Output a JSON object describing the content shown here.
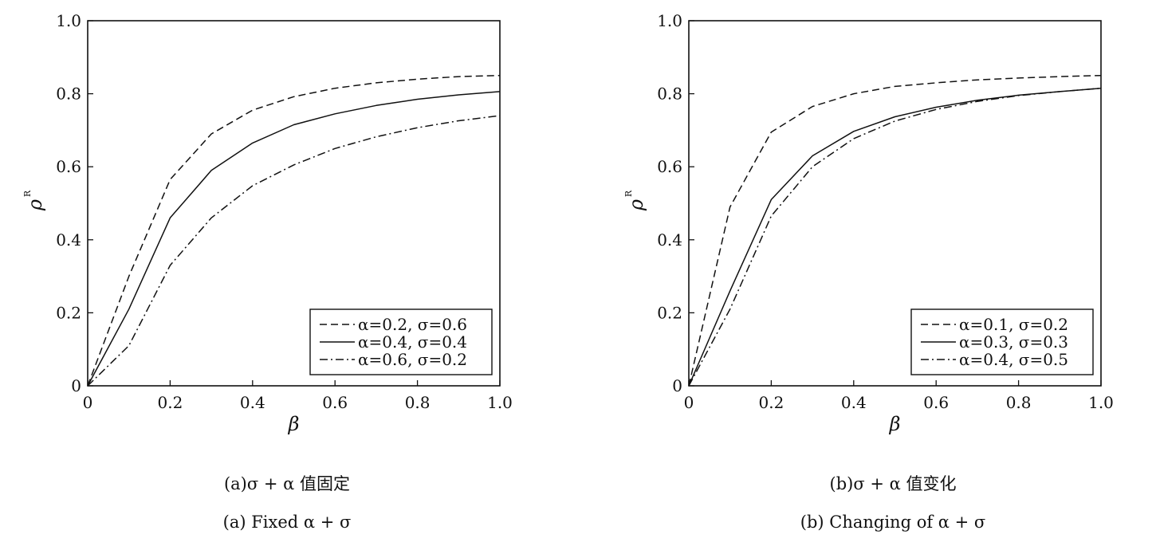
{
  "chart_data": [
    {
      "type": "line",
      "caption_cn": "(a)σ + α 值固定",
      "caption_en": "(a) Fixed α + σ",
      "xlabel": "β",
      "ylabel": "ρ",
      "ylabel_sup": "R",
      "xlim": [
        0,
        1.0
      ],
      "ylim": [
        0,
        1.0
      ],
      "xticks": [
        "0",
        "0.2",
        "0.4",
        "0.6",
        "0.8",
        "1.0"
      ],
      "yticks": [
        "0",
        "0.2",
        "0.4",
        "0.6",
        "0.8",
        "1.0"
      ],
      "grid": false,
      "legend_position": "bottom-right",
      "x": [
        0,
        0.1,
        0.2,
        0.3,
        0.4,
        0.5,
        0.6,
        0.7,
        0.8,
        0.9,
        1.0
      ],
      "series": [
        {
          "name": "α=0.2, σ=0.6",
          "style": "dashed",
          "values": [
            0,
            0.3,
            0.565,
            0.69,
            0.755,
            0.792,
            0.815,
            0.83,
            0.84,
            0.847,
            0.85
          ]
        },
        {
          "name": "α=0.4, σ=0.4",
          "style": "solid",
          "values": [
            0,
            0.21,
            0.46,
            0.59,
            0.665,
            0.715,
            0.745,
            0.768,
            0.785,
            0.797,
            0.806
          ]
        },
        {
          "name": "α=0.6, σ=0.2",
          "style": "dashdot",
          "values": [
            0,
            0.11,
            0.33,
            0.46,
            0.548,
            0.605,
            0.65,
            0.682,
            0.707,
            0.726,
            0.74
          ]
        }
      ]
    },
    {
      "type": "line",
      "caption_cn": "(b)σ + α 值变化",
      "caption_en": "(b) Changing of α + σ",
      "xlabel": "β",
      "ylabel": "ρ",
      "ylabel_sup": "R",
      "xlim": [
        0,
        1.0
      ],
      "ylim": [
        0,
        1.0
      ],
      "xticks": [
        "0",
        "0.2",
        "0.4",
        "0.6",
        "0.8",
        "1.0"
      ],
      "yticks": [
        "0",
        "0.2",
        "0.4",
        "0.6",
        "0.8",
        "1.0"
      ],
      "grid": false,
      "legend_position": "bottom-right",
      "x": [
        0,
        0.1,
        0.2,
        0.3,
        0.4,
        0.5,
        0.6,
        0.7,
        0.8,
        0.9,
        1.0
      ],
      "series": [
        {
          "name": "α=0.1, σ=0.2",
          "style": "dashed",
          "values": [
            0,
            0.49,
            0.695,
            0.765,
            0.8,
            0.82,
            0.83,
            0.838,
            0.843,
            0.847,
            0.85
          ]
        },
        {
          "name": "α=0.3, σ=0.3",
          "style": "solid",
          "values": [
            0,
            0.26,
            0.51,
            0.63,
            0.697,
            0.737,
            0.763,
            0.782,
            0.796,
            0.806,
            0.815
          ]
        },
        {
          "name": "α=0.4, σ=0.5",
          "style": "dashdot",
          "values": [
            0,
            0.21,
            0.465,
            0.6,
            0.677,
            0.725,
            0.757,
            0.779,
            0.795,
            0.806,
            0.815
          ]
        }
      ]
    }
  ]
}
